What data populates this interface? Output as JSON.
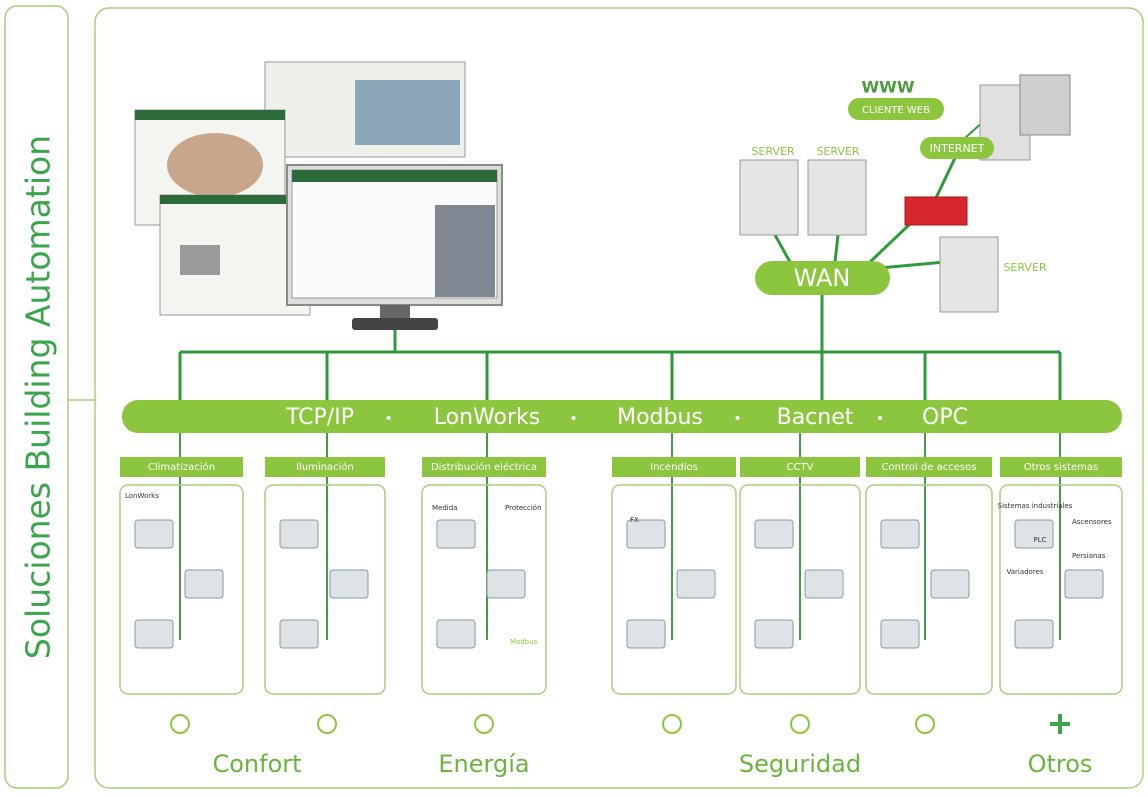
{
  "title": "Soluciones Building Automation",
  "network": {
    "www": "WWW",
    "web_client": "CLIENTE WEB",
    "internet": "INTERNET",
    "servers": [
      "SERVER",
      "SERVER",
      "SERVER"
    ],
    "wan": "WAN"
  },
  "bus": {
    "protocols": [
      "TCP/IP",
      "LonWorks",
      "Modbus",
      "Bacnet",
      "OPC"
    ]
  },
  "systems": [
    {
      "label": "Climatización",
      "details": [
        "LonWorks"
      ]
    },
    {
      "label": "Iluminación",
      "details": []
    },
    {
      "label": "Distribución eléctrica",
      "details": [
        "Medida",
        "Protección",
        "Modbus"
      ]
    },
    {
      "label": "Incendios",
      "details": [
        "FX"
      ]
    },
    {
      "label": "CCTV",
      "details": []
    },
    {
      "label": "Control de accesos",
      "details": []
    },
    {
      "label": "Otros sistemas",
      "details": [
        "Sistemas industriales",
        "Ascensores",
        "PLC",
        "Persianas",
        "Variadores"
      ]
    }
  ],
  "groups": [
    "Confort",
    "Energía",
    "Seguridad",
    "Otros"
  ]
}
